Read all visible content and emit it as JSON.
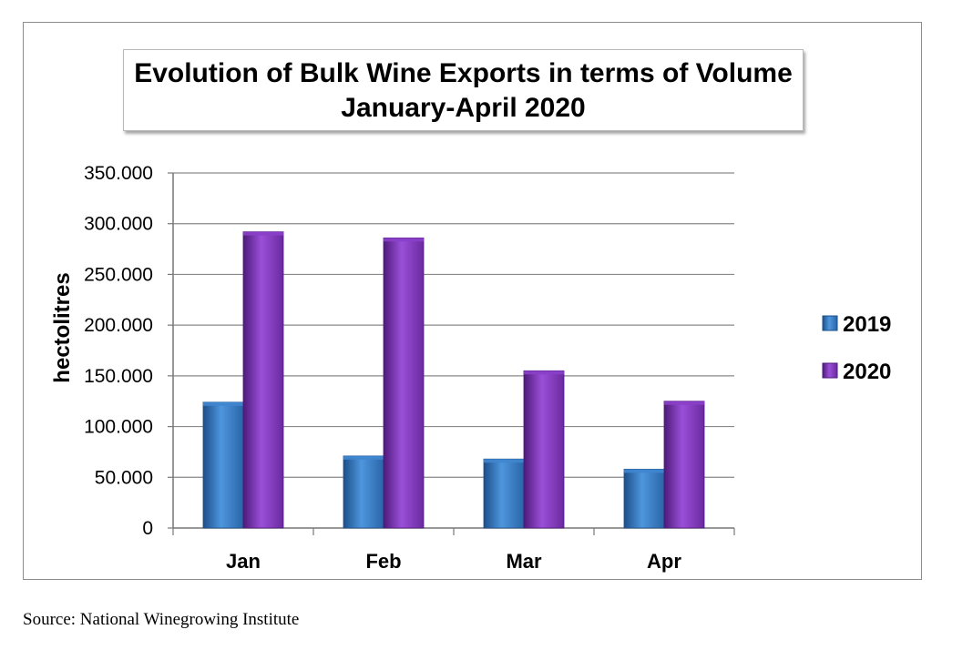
{
  "chart_data": {
    "type": "bar",
    "title": "Evolution of Bulk Wine Exports in terms of Volume",
    "subtitle": "January-April 2020",
    "xlabel": "",
    "ylabel": "hectolitres",
    "categories": [
      "Jan",
      "Feb",
      "Mar",
      "Apr"
    ],
    "series": [
      {
        "name": "2019",
        "values": [
          124000,
          71000,
          68000,
          58000
        ],
        "color": "#3f86cf",
        "color_dark": "#1c4f8a"
      },
      {
        "name": "2020",
        "values": [
          292000,
          286000,
          155000,
          125000
        ],
        "color": "#8a3fc8",
        "color_dark": "#4e1a7a"
      }
    ],
    "ylim": [
      0,
      350000
    ],
    "yticks": [
      0,
      50000,
      100000,
      150000,
      200000,
      250000,
      300000,
      350000
    ],
    "ytick_labels": [
      "0",
      "50.000",
      "100.000",
      "150.000",
      "200.000",
      "250.000",
      "300.000",
      "350.000"
    ],
    "grid": true,
    "legend_position": "right"
  },
  "source": "Source: National Winegrowing Institute"
}
